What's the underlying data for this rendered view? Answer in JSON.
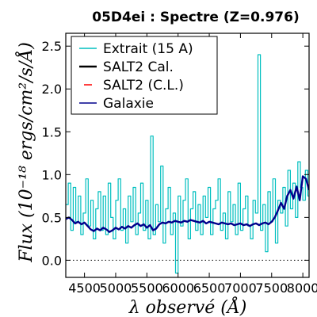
{
  "chart_data": {
    "type": "line",
    "title": "05D4ei : Spectre (Z=0.976)",
    "xlabel": "λ observé (Å)",
    "ylabel": "Flux (10⁻¹⁸ ergs/cm²/s/Å)",
    "xlim": [
      4200,
      8100
    ],
    "ylim": [
      -0.2,
      2.65
    ],
    "x_ticks": [
      4500,
      5000,
      5500,
      6000,
      6500,
      7000,
      7500,
      8000
    ],
    "x_tick_labels": [
      "4500",
      "5000",
      "5500",
      "6000",
      "6500",
      "7000",
      "7500",
      "8000"
    ],
    "y_ticks": [
      0.0,
      0.5,
      1.0,
      1.5,
      2.0,
      2.5
    ],
    "y_tick_labels": [
      "0.0",
      "0.5",
      "1.0",
      "1.5",
      "2.0",
      "2.5"
    ],
    "zero_line": true,
    "legend_position": "top-left",
    "series": [
      {
        "name": "Extrait (15 A)",
        "color": "#00bfbf",
        "style": "step",
        "x": [
          4200,
          4240,
          4280,
          4320,
          4360,
          4400,
          4440,
          4480,
          4520,
          4560,
          4600,
          4640,
          4680,
          4720,
          4760,
          4800,
          4840,
          4880,
          4920,
          4960,
          5000,
          5040,
          5080,
          5120,
          5160,
          5200,
          5240,
          5280,
          5320,
          5360,
          5400,
          5440,
          5480,
          5520,
          5560,
          5600,
          5640,
          5680,
          5720,
          5760,
          5800,
          5840,
          5880,
          5920,
          5960,
          6000,
          6040,
          6080,
          6120,
          6160,
          6200,
          6240,
          6280,
          6320,
          6360,
          6400,
          6440,
          6480,
          6520,
          6560,
          6600,
          6640,
          6680,
          6720,
          6760,
          6800,
          6840,
          6880,
          6920,
          6960,
          7000,
          7040,
          7080,
          7120,
          7160,
          7200,
          7240,
          7280,
          7320,
          7360,
          7400,
          7440,
          7480,
          7520,
          7560,
          7600,
          7640,
          7680,
          7720,
          7760,
          7800,
          7840,
          7880,
          7920,
          7960,
          8000,
          8040,
          8080
        ],
        "values": [
          0.65,
          0.9,
          0.35,
          0.85,
          0.45,
          0.75,
          0.3,
          0.55,
          0.95,
          0.4,
          0.7,
          0.25,
          0.6,
          0.8,
          0.35,
          0.75,
          0.3,
          0.9,
          0.5,
          0.25,
          0.7,
          0.95,
          0.35,
          0.6,
          0.2,
          0.75,
          0.45,
          0.85,
          0.3,
          0.55,
          0.9,
          0.35,
          0.7,
          0.25,
          1.45,
          0.3,
          0.65,
          0.45,
          1.1,
          0.2,
          0.6,
          0.85,
          0.3,
          0.55,
          -0.15,
          0.75,
          0.4,
          0.7,
          0.95,
          0.25,
          0.6,
          0.8,
          0.35,
          0.65,
          0.3,
          0.75,
          0.5,
          0.85,
          0.3,
          0.6,
          0.7,
          0.95,
          0.35,
          0.55,
          0.25,
          0.8,
          0.45,
          0.65,
          0.3,
          0.9,
          0.35,
          0.6,
          0.75,
          0.4,
          0.25,
          0.7,
          0.55,
          2.4,
          0.35,
          0.65,
          0.1,
          0.8,
          0.45,
          0.95,
          0.2,
          0.7,
          0.55,
          0.85,
          0.4,
          1.05,
          0.6,
          0.9,
          0.5,
          1.15,
          0.85,
          0.7,
          1.05,
          0.75
        ]
      },
      {
        "name": "SALT2 Cal.",
        "color": "#000000",
        "style": "line",
        "x": [],
        "values": []
      },
      {
        "name": "SALT2 (C.L.)",
        "color": "#ff0000",
        "style": "dashed",
        "x": [],
        "values": []
      },
      {
        "name": "Galaxie",
        "color": "#00008b",
        "style": "line",
        "x": [
          4200,
          4250,
          4300,
          4350,
          4400,
          4450,
          4500,
          4550,
          4600,
          4650,
          4700,
          4750,
          4800,
          4850,
          4900,
          4950,
          5000,
          5050,
          5100,
          5150,
          5200,
          5250,
          5300,
          5350,
          5400,
          5450,
          5500,
          5550,
          5600,
          5650,
          5700,
          5750,
          5800,
          5850,
          5900,
          5950,
          6000,
          6050,
          6100,
          6150,
          6200,
          6250,
          6300,
          6350,
          6400,
          6450,
          6500,
          6550,
          6600,
          6650,
          6700,
          6750,
          6800,
          6850,
          6900,
          6950,
          7000,
          7050,
          7100,
          7150,
          7200,
          7250,
          7300,
          7350,
          7400,
          7450,
          7500,
          7550,
          7600,
          7650,
          7700,
          7750,
          7800,
          7850,
          7900,
          7950,
          8000,
          8050,
          8100
        ],
        "values": [
          0.48,
          0.5,
          0.47,
          0.43,
          0.45,
          0.42,
          0.44,
          0.4,
          0.36,
          0.34,
          0.37,
          0.35,
          0.38,
          0.36,
          0.33,
          0.35,
          0.38,
          0.36,
          0.39,
          0.37,
          0.4,
          0.38,
          0.41,
          0.43,
          0.4,
          0.42,
          0.38,
          0.41,
          0.35,
          0.37,
          0.42,
          0.44,
          0.43,
          0.45,
          0.44,
          0.46,
          0.45,
          0.44,
          0.46,
          0.45,
          0.47,
          0.46,
          0.45,
          0.44,
          0.46,
          0.43,
          0.45,
          0.44,
          0.43,
          0.42,
          0.44,
          0.43,
          0.42,
          0.43,
          0.41,
          0.42,
          0.43,
          0.41,
          0.42,
          0.4,
          0.42,
          0.43,
          0.41,
          0.43,
          0.44,
          0.42,
          0.45,
          0.5,
          0.58,
          0.67,
          0.6,
          0.75,
          0.82,
          0.72,
          0.86,
          0.7,
          0.98,
          0.95,
          0.82
        ]
      }
    ]
  }
}
